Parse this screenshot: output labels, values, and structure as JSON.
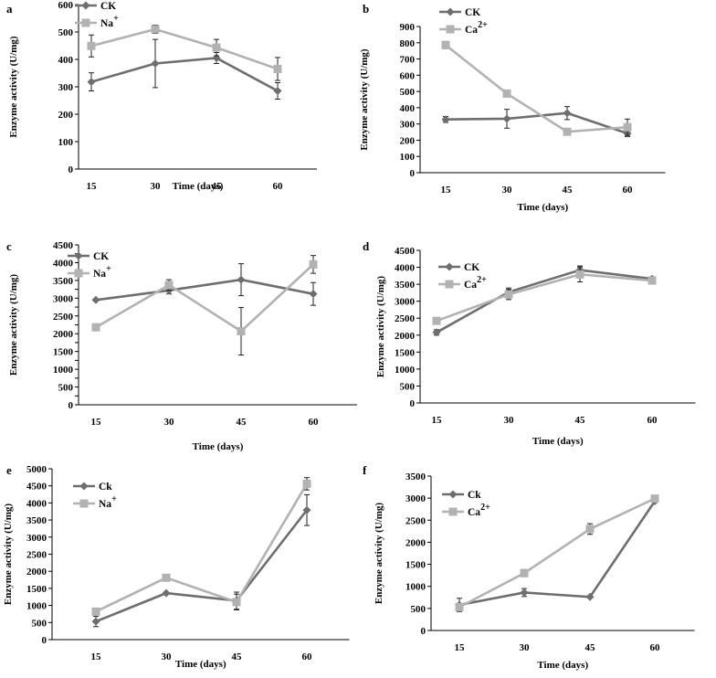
{
  "colors": {
    "ck": "#6e6e6e",
    "treat": "#b2b2b2",
    "axis": "#000000"
  },
  "chart_data": [
    {
      "panel": "a",
      "type": "line",
      "x": [
        "15",
        "30",
        "45",
        "60"
      ],
      "xlabel": "Time (days)",
      "ylabel": "Enzyme activity (U/mg)",
      "ylim": [
        0,
        600
      ],
      "yticks": [
        0,
        100,
        200,
        300,
        400,
        500,
        600
      ],
      "series": [
        {
          "name": "CK",
          "sup": "",
          "values": [
            318,
            385,
            405,
            285
          ],
          "err": [
            33,
            88,
            20,
            30
          ]
        },
        {
          "name": "Na",
          "sup": "+",
          "values": [
            449,
            510,
            443,
            365
          ],
          "err": [
            40,
            15,
            30,
            42
          ]
        }
      ]
    },
    {
      "panel": "b",
      "type": "line",
      "x": [
        "15",
        "30",
        "45",
        "60"
      ],
      "xlabel": "Time (days)",
      "ylabel": "Enzyme activity (U/mg)",
      "ylim": [
        0,
        900
      ],
      "yticks": [
        0,
        100,
        200,
        300,
        400,
        500,
        600,
        700,
        800,
        900
      ],
      "series": [
        {
          "name": "CK",
          "sup": "",
          "values": [
            328,
            332,
            367,
            242
          ],
          "err": [
            18,
            58,
            40,
            20
          ]
        },
        {
          "name": "Ca",
          "sup": "2+",
          "values": [
            786,
            487,
            252,
            280
          ],
          "err": [
            22,
            8,
            10,
            50
          ]
        }
      ]
    },
    {
      "panel": "c",
      "type": "line",
      "x": [
        "15",
        "30",
        "45",
        "60"
      ],
      "xlabel": "Time (days)",
      "ylabel": "Enzyme activity (U/mg)",
      "ylim": [
        0,
        4500
      ],
      "yticks": [
        0,
        250,
        500,
        750,
        1000,
        1250,
        1500,
        1750,
        2000,
        2250,
        2500,
        2750,
        3000,
        3250,
        3500,
        3750,
        4000,
        4250,
        4500
      ],
      "ytick_labels": [
        "0",
        "",
        "500",
        "",
        "1000",
        "",
        "1500",
        "",
        "2000",
        "",
        "2500",
        "",
        "3000",
        "",
        "3500",
        "",
        "4000",
        "",
        "4500"
      ],
      "series": [
        {
          "name": "CK",
          "sup": "",
          "values": [
            2950,
            3220,
            3520,
            3120
          ],
          "err": [
            0,
            100,
            450,
            320
          ]
        },
        {
          "name": "Na",
          "sup": "+",
          "values": [
            2180,
            3370,
            2070,
            3950
          ],
          "err": [
            0,
            150,
            670,
            250
          ]
        }
      ]
    },
    {
      "panel": "d",
      "type": "line",
      "x": [
        "15",
        "30",
        "45",
        "60"
      ],
      "xlabel": "Time (days)",
      "ylabel": "Enzyme activity (U/mg)",
      "ylim": [
        0,
        4500
      ],
      "yticks": [
        0,
        500,
        1000,
        1500,
        2000,
        2500,
        3000,
        3500,
        4000,
        4500
      ],
      "series": [
        {
          "name": "CK",
          "sup": "",
          "values": [
            2080,
            3270,
            3920,
            3660
          ],
          "err": [
            80,
            120,
            120,
            60
          ]
        },
        {
          "name": "Ca",
          "sup": "2+",
          "values": [
            2420,
            3200,
            3790,
            3610
          ],
          "err": [
            0,
            150,
            220,
            60
          ]
        }
      ]
    },
    {
      "panel": "e",
      "type": "line",
      "x": [
        "15",
        "30",
        "45",
        "60"
      ],
      "xlabel": "Time (days)",
      "ylabel": "Enzyme activity (U/mg)",
      "ylim": [
        0,
        5000
      ],
      "yticks": [
        0,
        500,
        1000,
        1500,
        2000,
        2500,
        3000,
        3500,
        4000,
        4500,
        5000
      ],
      "series": [
        {
          "name": "Ck",
          "sup": "",
          "values": [
            530,
            1360,
            1140,
            3790
          ],
          "err": [
            150,
            0,
            250,
            450
          ]
        },
        {
          "name": "Na",
          "sup": "+",
          "values": [
            820,
            1810,
            1100,
            4560
          ],
          "err": [
            0,
            0,
            230,
            180
          ]
        }
      ]
    },
    {
      "panel": "f",
      "type": "line",
      "x": [
        "15",
        "30",
        "45",
        "60"
      ],
      "xlabel": "Time (days)",
      "ylabel": "Enzyme activity (U/mg)",
      "ylim": [
        0,
        3500
      ],
      "yticks": [
        0,
        500,
        1000,
        1500,
        2000,
        2500,
        3000,
        3500
      ],
      "series": [
        {
          "name": "Ck",
          "sup": "",
          "values": [
            580,
            860,
            760,
            2930
          ],
          "err": [
            150,
            90,
            0,
            0
          ]
        },
        {
          "name": "Ca",
          "sup": "2+",
          "values": [
            530,
            1300,
            2300,
            2990
          ],
          "err": [
            0,
            80,
            120,
            0
          ]
        }
      ]
    }
  ]
}
